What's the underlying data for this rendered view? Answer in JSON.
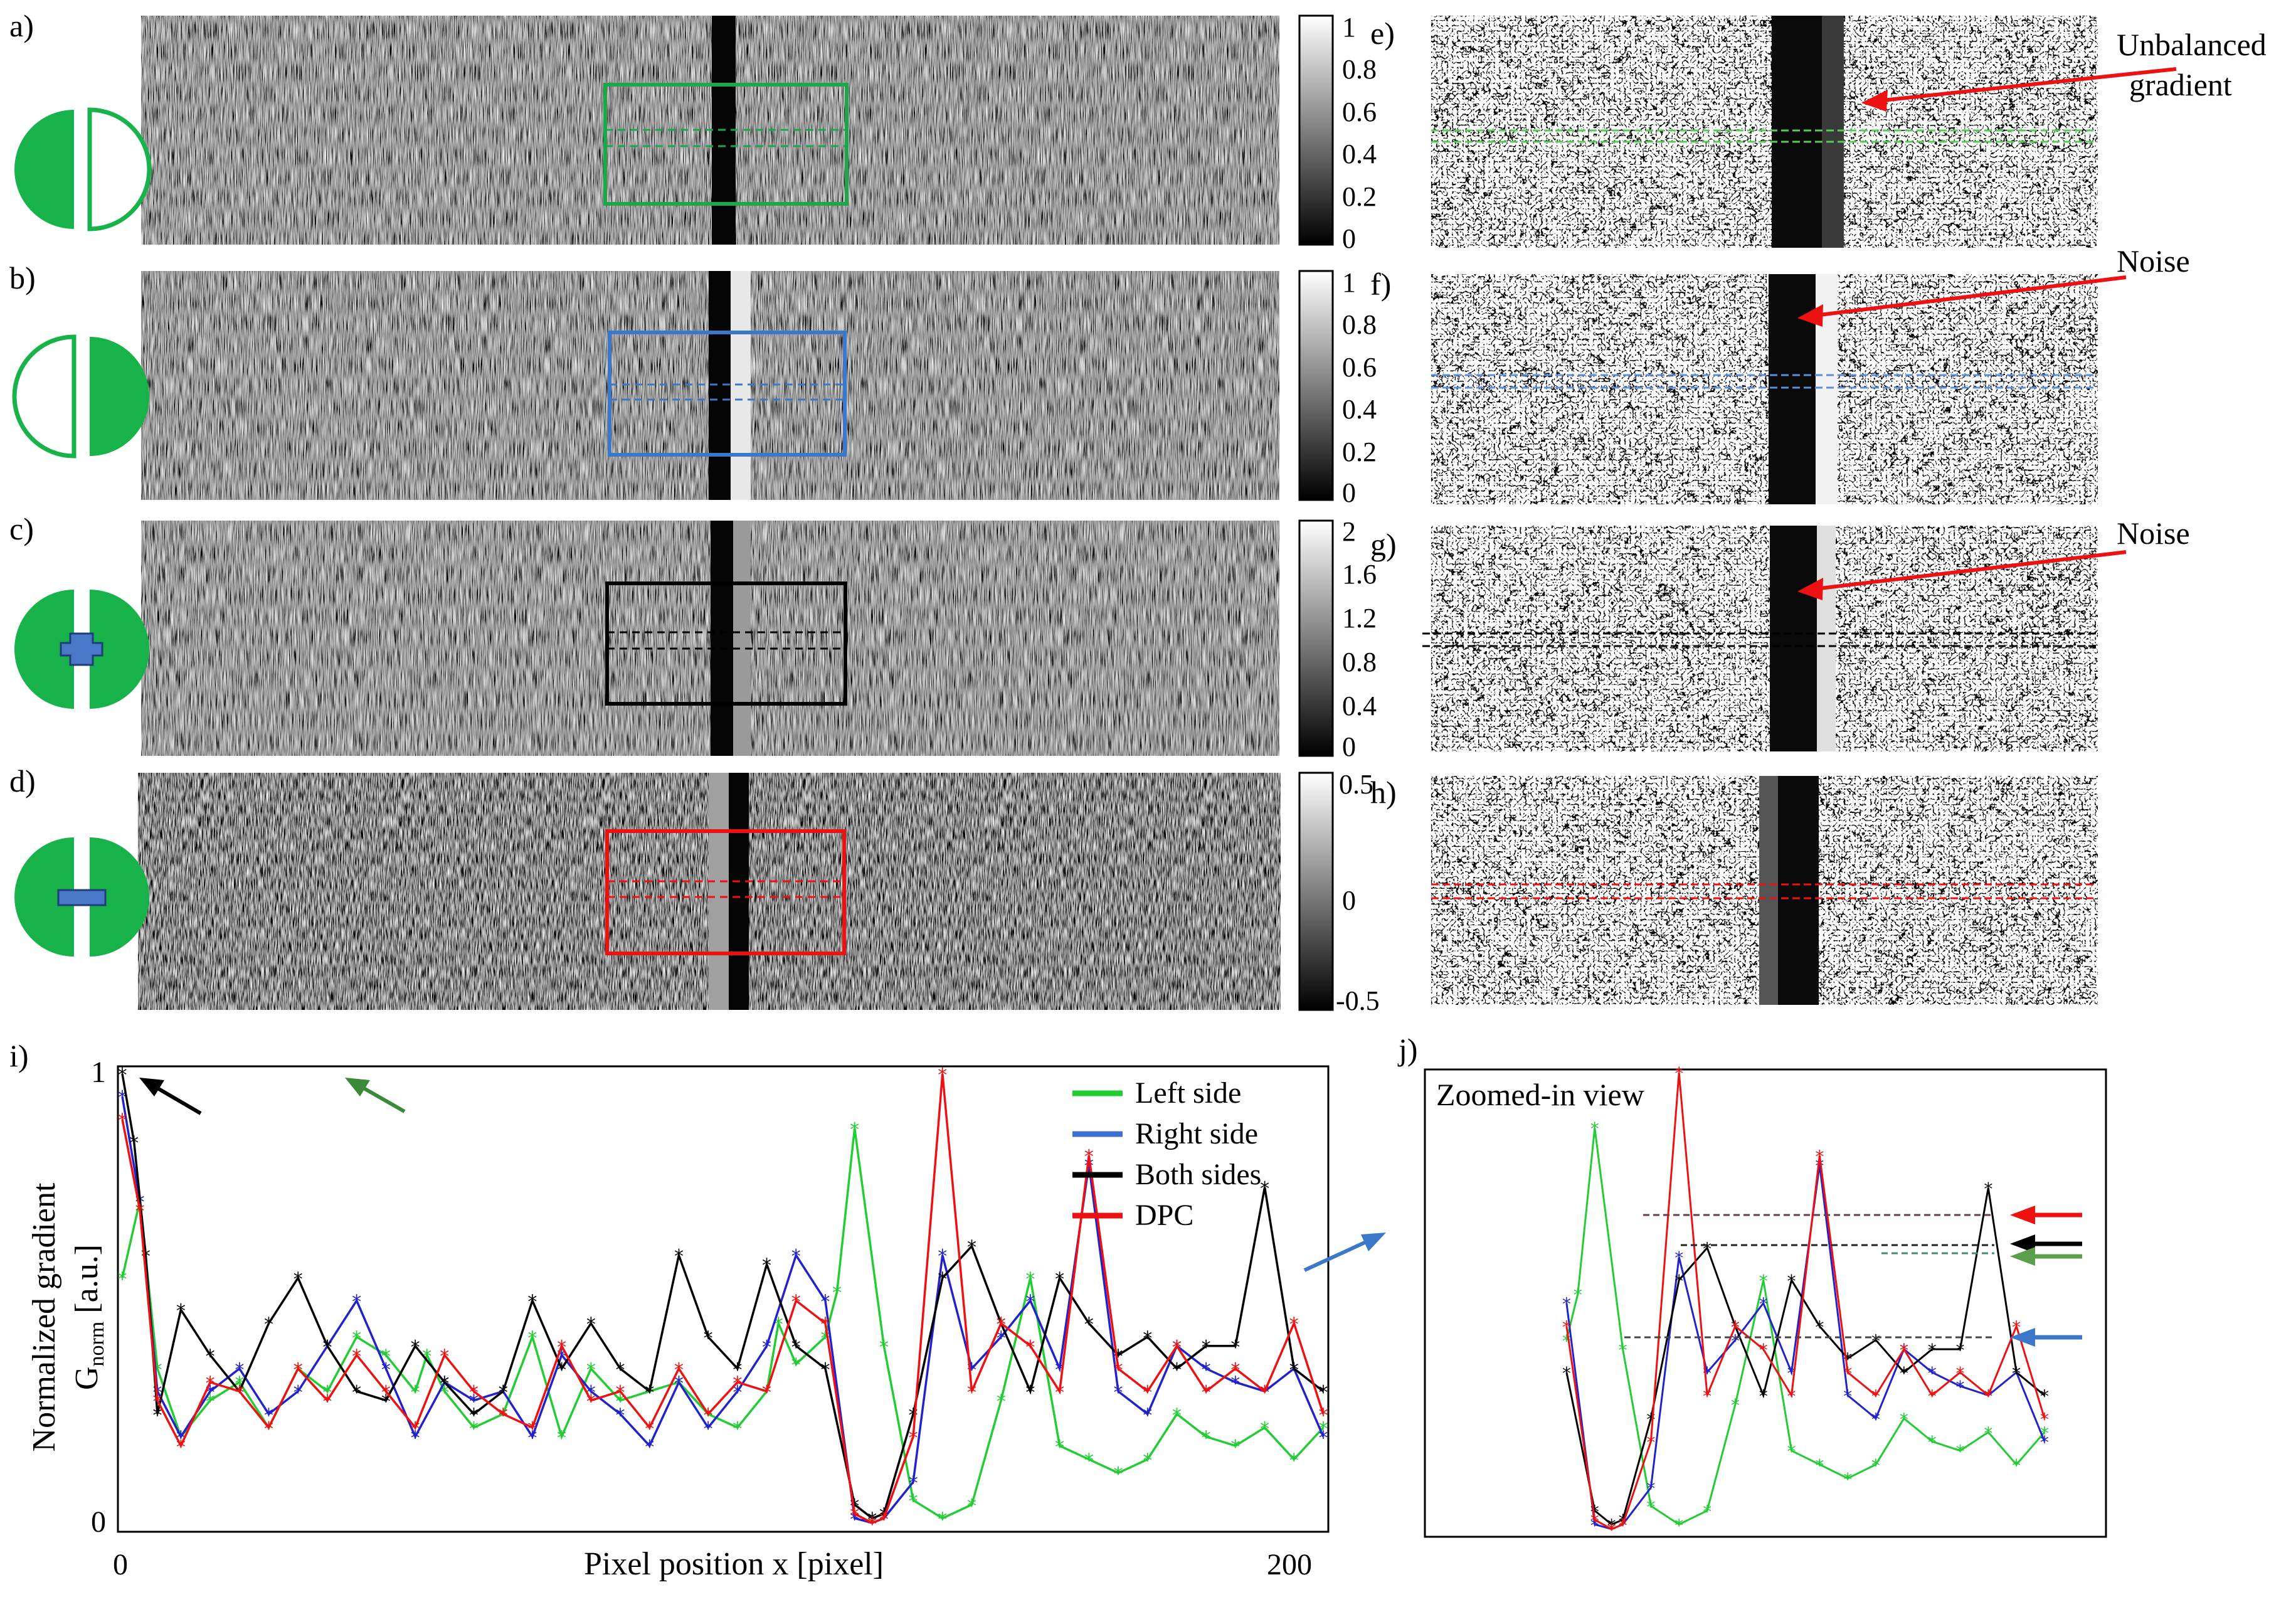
{
  "panel_labels": [
    "a)",
    "b)",
    "c)",
    "d)",
    "e)",
    "f)",
    "g)",
    "h)",
    "i)",
    "j)"
  ],
  "colorbars": [
    {
      "ticks": [
        "1",
        "0.8",
        "0.6",
        "0.4",
        "0.2",
        "0"
      ],
      "values": [
        1,
        0.8,
        0.6,
        0.4,
        0.2,
        0
      ]
    },
    {
      "ticks": [
        "1",
        "0.8",
        "0.6",
        "0.4",
        "0.2",
        "0"
      ],
      "values": [
        1,
        0.8,
        0.6,
        0.4,
        0.2,
        0
      ]
    },
    {
      "ticks": [
        "2",
        "1.6",
        "1.2",
        "0.8",
        "0.4",
        "0"
      ],
      "values": [
        2,
        1.6,
        1.2,
        0.8,
        0.4,
        0
      ]
    },
    {
      "ticks": [
        "0.5",
        "0",
        "-0.5"
      ],
      "values": [
        0.5,
        0,
        -0.5
      ]
    }
  ],
  "annotations": {
    "unbalanced_line1": "Unbalanced",
    "unbalanced_line2": "gradient",
    "noise_f": "Noise",
    "noise_g": "Noise"
  },
  "colors": {
    "left": "#22cc33",
    "right": "#2222cc",
    "both": "#000000",
    "dpc": "#ee1111",
    "icon_green": "#17b34a",
    "box_green": "#1aa84a",
    "box_blue": "#3b78c9",
    "arrow_red": "#ee1111",
    "arrow_blue": "#3b78c9",
    "arrow_green": "#3a8a3a"
  },
  "chart_i": {
    "ylabel_line1": "Normalized gradient",
    "ylabel_G": "G",
    "ylabel_sub": "norm",
    "ylabel_unit": "[a.u.]",
    "xlabel": "Pixel position x [pixel]",
    "xtick_0": "0",
    "xtick_200": "200",
    "ytick_0": "0",
    "ytick_1": "1",
    "legend": [
      "Left side",
      "Right side",
      "Both sides",
      "DPC"
    ]
  },
  "chart_j": {
    "title": "Zoomed-in view"
  },
  "chart_data": {
    "type": "line",
    "xlabel": "Pixel position x [pixel]",
    "ylabel": "Normalized gradient G_norm [a.u.]",
    "xlim": [
      0,
      205
    ],
    "ylim": [
      0,
      1
    ],
    "xticks": [
      0,
      200
    ],
    "yticks": [
      0,
      1
    ],
    "legend_position": "top-right",
    "series": [
      {
        "name": "Left side",
        "color": "#22cc33",
        "x": [
          0,
          3,
          6,
          10,
          15,
          20,
          25,
          30,
          35,
          40,
          45,
          50,
          52,
          55,
          60,
          65,
          70,
          75,
          80,
          85,
          90,
          95,
          100,
          105,
          110,
          112,
          115,
          120,
          122,
          125,
          130,
          135,
          140,
          145,
          150,
          155,
          160,
          165,
          170,
          175,
          180,
          185,
          190,
          195,
          200,
          205
        ],
        "values": [
          0.55,
          0.72,
          0.35,
          0.2,
          0.28,
          0.32,
          0.22,
          0.35,
          0.3,
          0.42,
          0.38,
          0.3,
          0.38,
          0.3,
          0.22,
          0.25,
          0.42,
          0.2,
          0.35,
          0.28,
          0.3,
          0.32,
          0.25,
          0.22,
          0.3,
          0.45,
          0.36,
          0.42,
          0.52,
          0.88,
          0.4,
          0.06,
          0.02,
          0.05,
          0.28,
          0.55,
          0.18,
          0.15,
          0.12,
          0.15,
          0.25,
          0.2,
          0.18,
          0.22,
          0.15,
          0.22
        ]
      },
      {
        "name": "Right side",
        "color": "#2222cc",
        "x": [
          0,
          3,
          6,
          10,
          15,
          20,
          25,
          30,
          35,
          40,
          45,
          50,
          55,
          60,
          65,
          70,
          75,
          80,
          85,
          90,
          95,
          100,
          105,
          110,
          115,
          120,
          125,
          128,
          130,
          135,
          140,
          145,
          150,
          155,
          160,
          165,
          170,
          175,
          180,
          185,
          190,
          195,
          200,
          205
        ],
        "values": [
          0.95,
          0.72,
          0.3,
          0.2,
          0.3,
          0.35,
          0.25,
          0.3,
          0.4,
          0.5,
          0.35,
          0.2,
          0.32,
          0.28,
          0.3,
          0.2,
          0.38,
          0.3,
          0.25,
          0.18,
          0.32,
          0.22,
          0.3,
          0.4,
          0.6,
          0.5,
          0.02,
          0.01,
          0.02,
          0.1,
          0.6,
          0.35,
          0.42,
          0.5,
          0.35,
          0.8,
          0.3,
          0.25,
          0.4,
          0.35,
          0.32,
          0.3,
          0.35,
          0.2
        ]
      },
      {
        "name": "Both sides",
        "color": "#000000",
        "x": [
          0,
          2,
          4,
          6,
          10,
          15,
          20,
          25,
          30,
          35,
          40,
          45,
          50,
          55,
          60,
          65,
          70,
          75,
          80,
          85,
          90,
          95,
          100,
          105,
          110,
          115,
          120,
          125,
          128,
          130,
          135,
          140,
          145,
          150,
          155,
          160,
          165,
          170,
          175,
          180,
          185,
          190,
          195,
          200,
          205
        ],
        "values": [
          1.0,
          0.85,
          0.6,
          0.25,
          0.48,
          0.38,
          0.3,
          0.45,
          0.55,
          0.4,
          0.3,
          0.28,
          0.4,
          0.32,
          0.25,
          0.3,
          0.5,
          0.35,
          0.45,
          0.35,
          0.3,
          0.6,
          0.42,
          0.35,
          0.58,
          0.4,
          0.35,
          0.05,
          0.02,
          0.03,
          0.25,
          0.55,
          0.62,
          0.45,
          0.3,
          0.55,
          0.45,
          0.38,
          0.42,
          0.35,
          0.4,
          0.4,
          0.75,
          0.35,
          0.3
        ]
      },
      {
        "name": "DPC",
        "color": "#ee1111",
        "x": [
          0,
          3,
          6,
          10,
          15,
          20,
          25,
          30,
          35,
          40,
          45,
          50,
          55,
          60,
          65,
          70,
          75,
          80,
          85,
          90,
          95,
          100,
          105,
          110,
          115,
          120,
          125,
          128,
          130,
          135,
          140,
          145,
          150,
          155,
          160,
          165,
          170,
          175,
          180,
          185,
          190,
          195,
          200,
          205
        ],
        "values": [
          0.9,
          0.7,
          0.28,
          0.18,
          0.32,
          0.3,
          0.22,
          0.35,
          0.28,
          0.38,
          0.3,
          0.22,
          0.38,
          0.3,
          0.25,
          0.22,
          0.4,
          0.28,
          0.3,
          0.22,
          0.35,
          0.25,
          0.32,
          0.3,
          0.5,
          0.45,
          0.03,
          0.01,
          0.02,
          0.2,
          1.0,
          0.3,
          0.45,
          0.4,
          0.3,
          0.82,
          0.35,
          0.3,
          0.4,
          0.3,
          0.35,
          0.3,
          0.45,
          0.25
        ]
      }
    ]
  }
}
